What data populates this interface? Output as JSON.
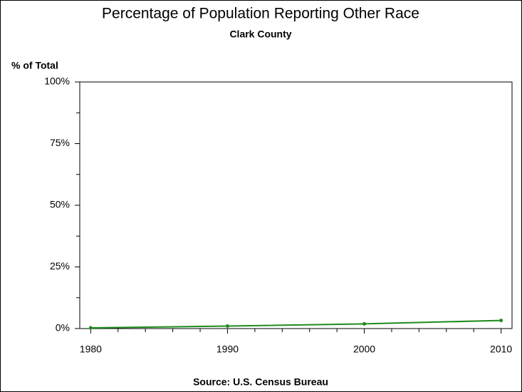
{
  "chart_data": {
    "type": "line",
    "title": "Percentage of Population Reporting Other Race",
    "subtitle": "Clark County",
    "y_label": "% of Total",
    "source": "Source: U.S. Census Bureau",
    "x": [
      1980,
      1990,
      2000,
      2010
    ],
    "series": [
      {
        "name": "Other Race",
        "color": "#1e8c1e",
        "values": [
          0.3,
          1.0,
          1.9,
          3.3
        ]
      }
    ],
    "xlim": [
      1979.2,
      2010.8
    ],
    "xticks": [
      1980,
      1990,
      2000,
      2010
    ],
    "xminor": [
      1982,
      1984,
      1986,
      1988,
      1992,
      1994,
      1996,
      1998,
      2002,
      2004,
      2006,
      2008
    ],
    "ylim": [
      0,
      100
    ],
    "yticks": [
      {
        "value": 0,
        "label": "0%"
      },
      {
        "value": 25,
        "label": "25%"
      },
      {
        "value": 50,
        "label": "50%"
      },
      {
        "value": 75,
        "label": "75%"
      },
      {
        "value": 100,
        "label": "100%"
      }
    ],
    "yminor": [
      12.5,
      37.5,
      62.5,
      87.5
    ]
  }
}
